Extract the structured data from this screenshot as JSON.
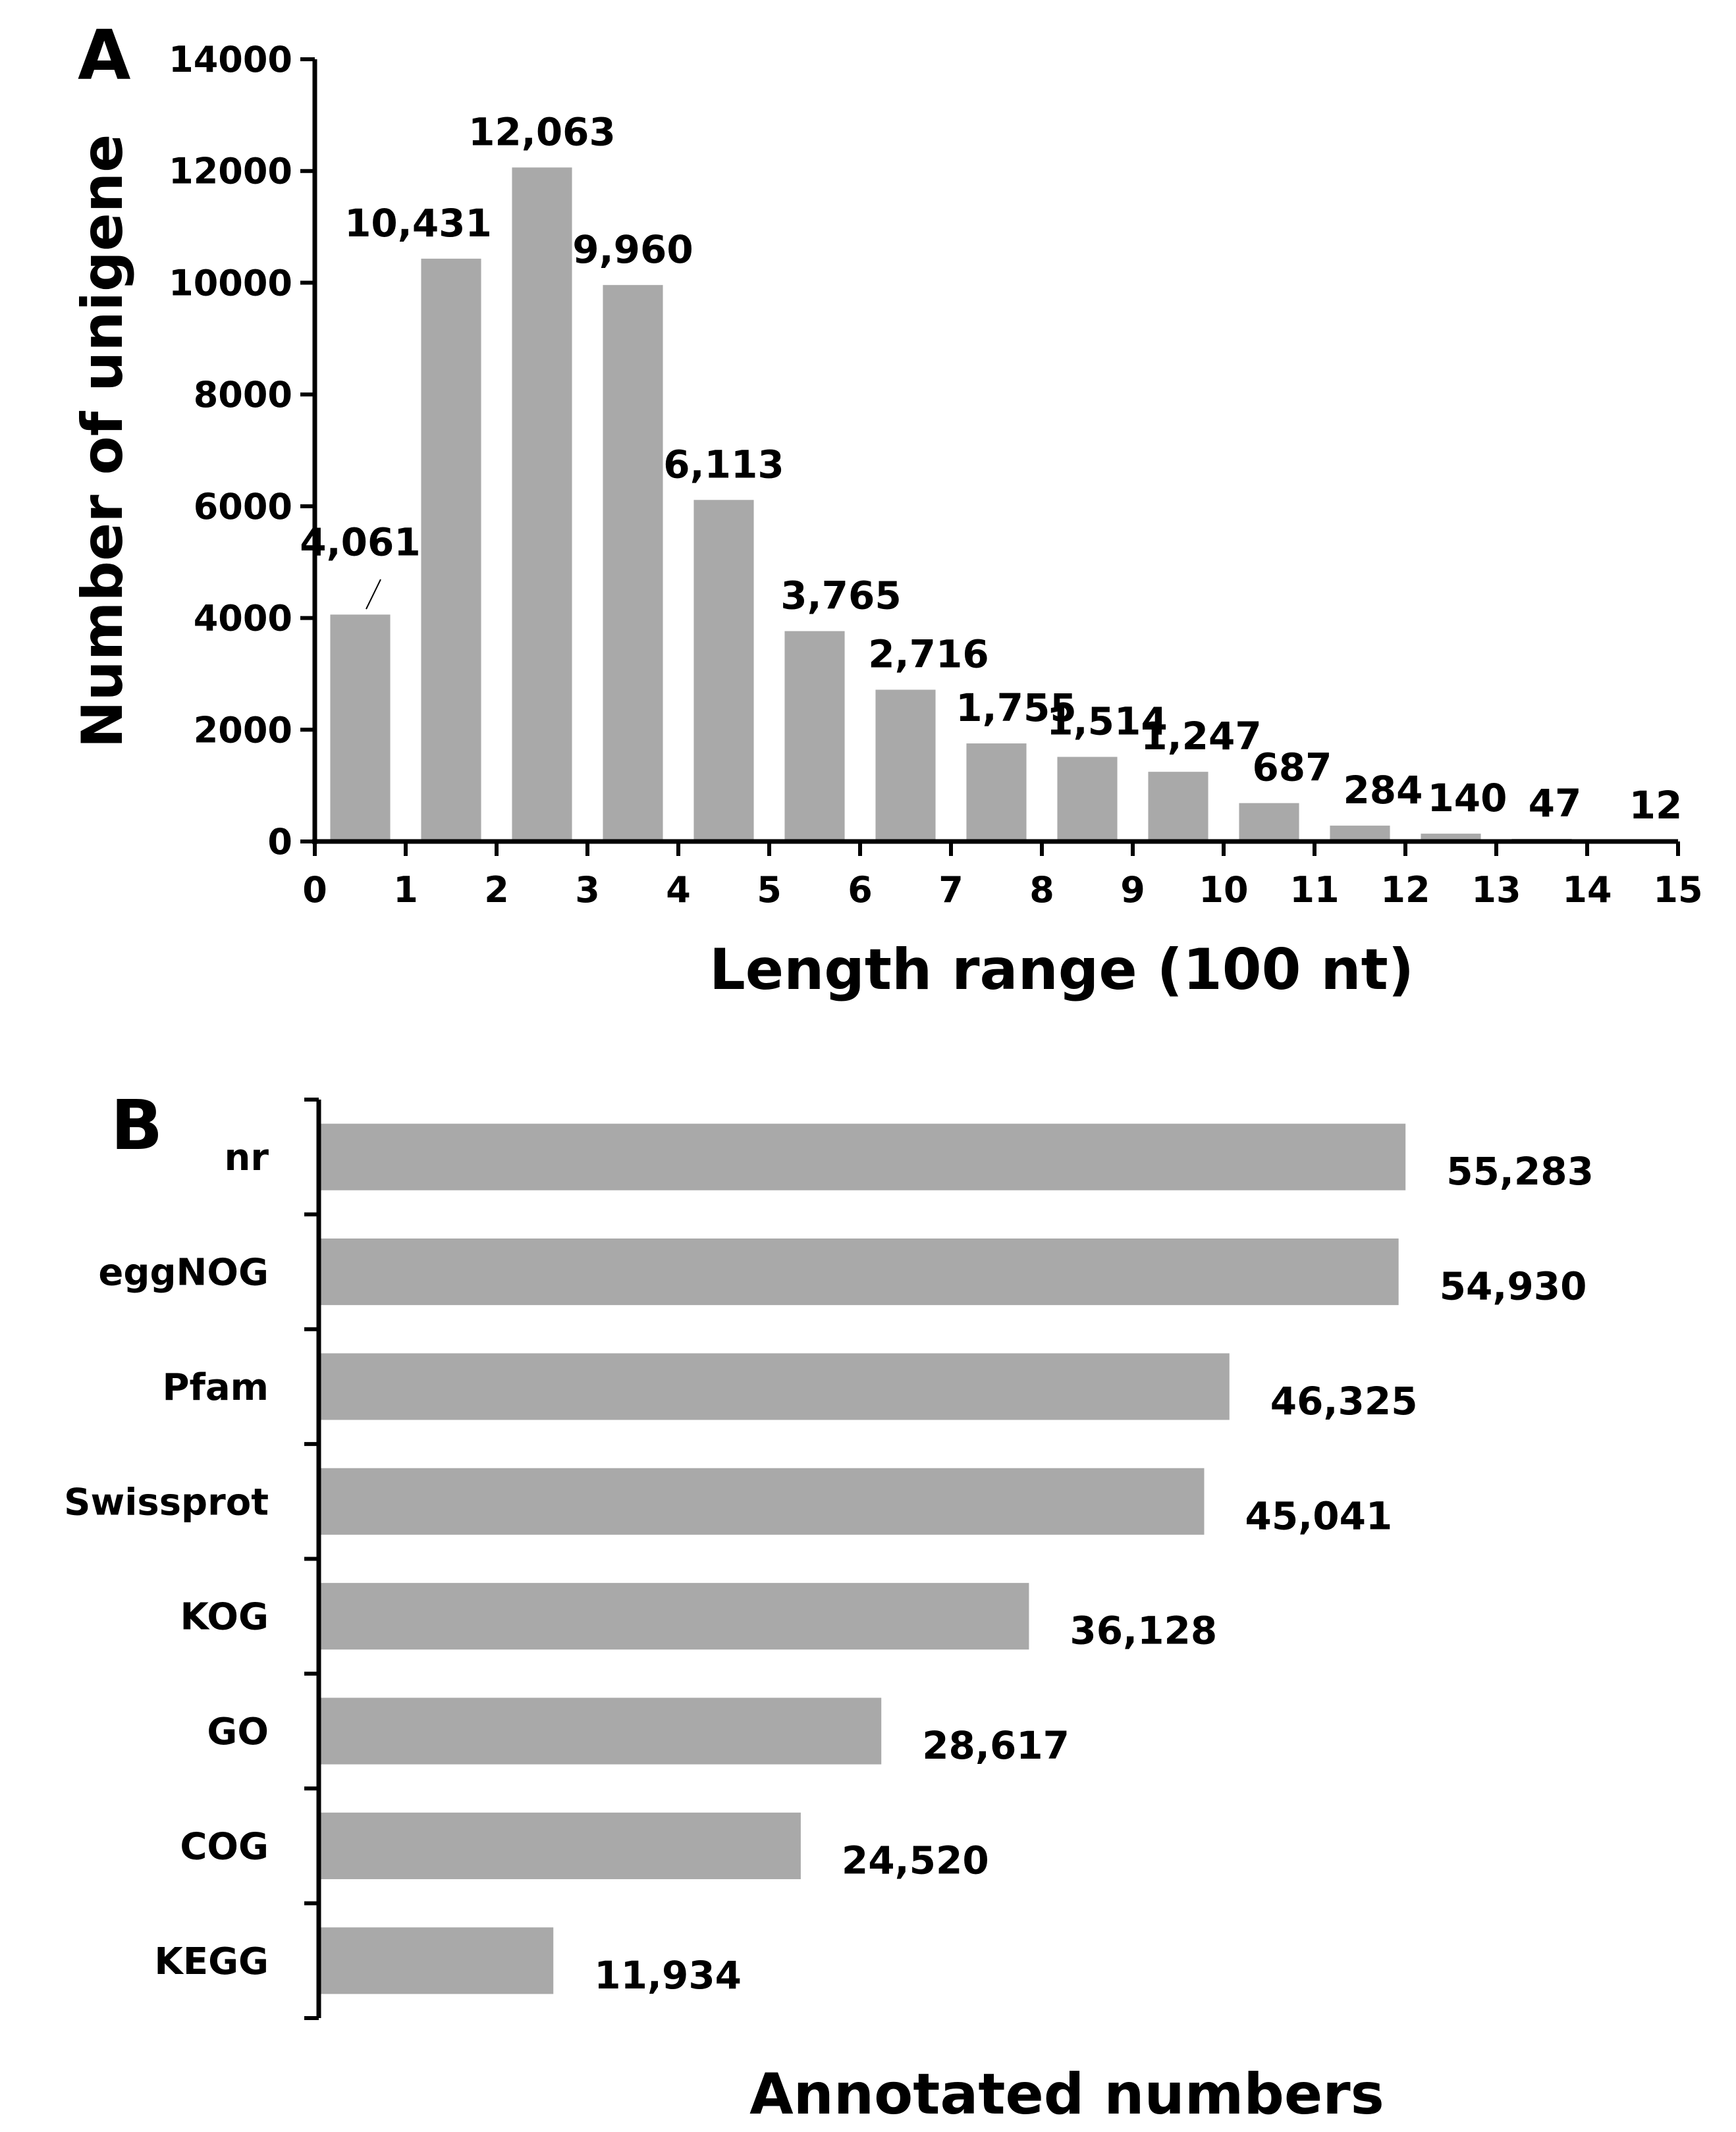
{
  "colors": {
    "bar": "#a9a9a9",
    "axis": "#000000",
    "text": "#000000",
    "background": "#ffffff"
  },
  "chart_data": [
    {
      "panel": "A",
      "type": "bar",
      "title": "",
      "xlabel": "Length range (100 nt)",
      "ylabel": "Number of unigene",
      "ylim": [
        0,
        14000
      ],
      "xlim": [
        0,
        15
      ],
      "yticks": [
        "0",
        "2000",
        "4000",
        "6000",
        "8000",
        "10000",
        "12000",
        "14000"
      ],
      "xticks": [
        "0",
        "1",
        "2",
        "3",
        "4",
        "5",
        "6",
        "7",
        "8",
        "9",
        "10",
        "11",
        "12",
        "13",
        "14",
        "15"
      ],
      "grid": false,
      "legend": "none",
      "categories": [
        "0-1",
        "1-2",
        "2-3",
        "3-4",
        "4-5",
        "5-6",
        "6-7",
        "7-8",
        "8-9",
        "9-10",
        "10-11",
        "11-12",
        "12-13",
        "13-14",
        "14-15"
      ],
      "values": [
        4061,
        10431,
        12063,
        9960,
        6113,
        3765,
        2716,
        1755,
        1514,
        1247,
        687,
        284,
        140,
        47,
        12
      ],
      "labels": [
        "4,061",
        "10,431",
        "12,063",
        "9,960",
        "6,113",
        "3,765",
        "2,716",
        "1,755",
        "1,514",
        "1,247",
        "687",
        "284",
        "140",
        "47",
        "12"
      ]
    },
    {
      "panel": "B",
      "type": "bar",
      "orientation": "horizontal",
      "title": "",
      "xlabel": "Annotated numbers",
      "ylabel": "",
      "xlim": [
        0,
        60000
      ],
      "grid": false,
      "legend": "none",
      "categories": [
        "nr",
        "eggNOG",
        "Pfam",
        "Swissprot",
        "KOG",
        "GO",
        "COG",
        "KEGG"
      ],
      "values": [
        55283,
        54930,
        46325,
        45041,
        36128,
        28617,
        24520,
        11934
      ],
      "labels": [
        "55,283",
        "54,930",
        "46,325",
        "45,041",
        "36,128",
        "28,617",
        "24,520",
        "11,934"
      ]
    }
  ]
}
